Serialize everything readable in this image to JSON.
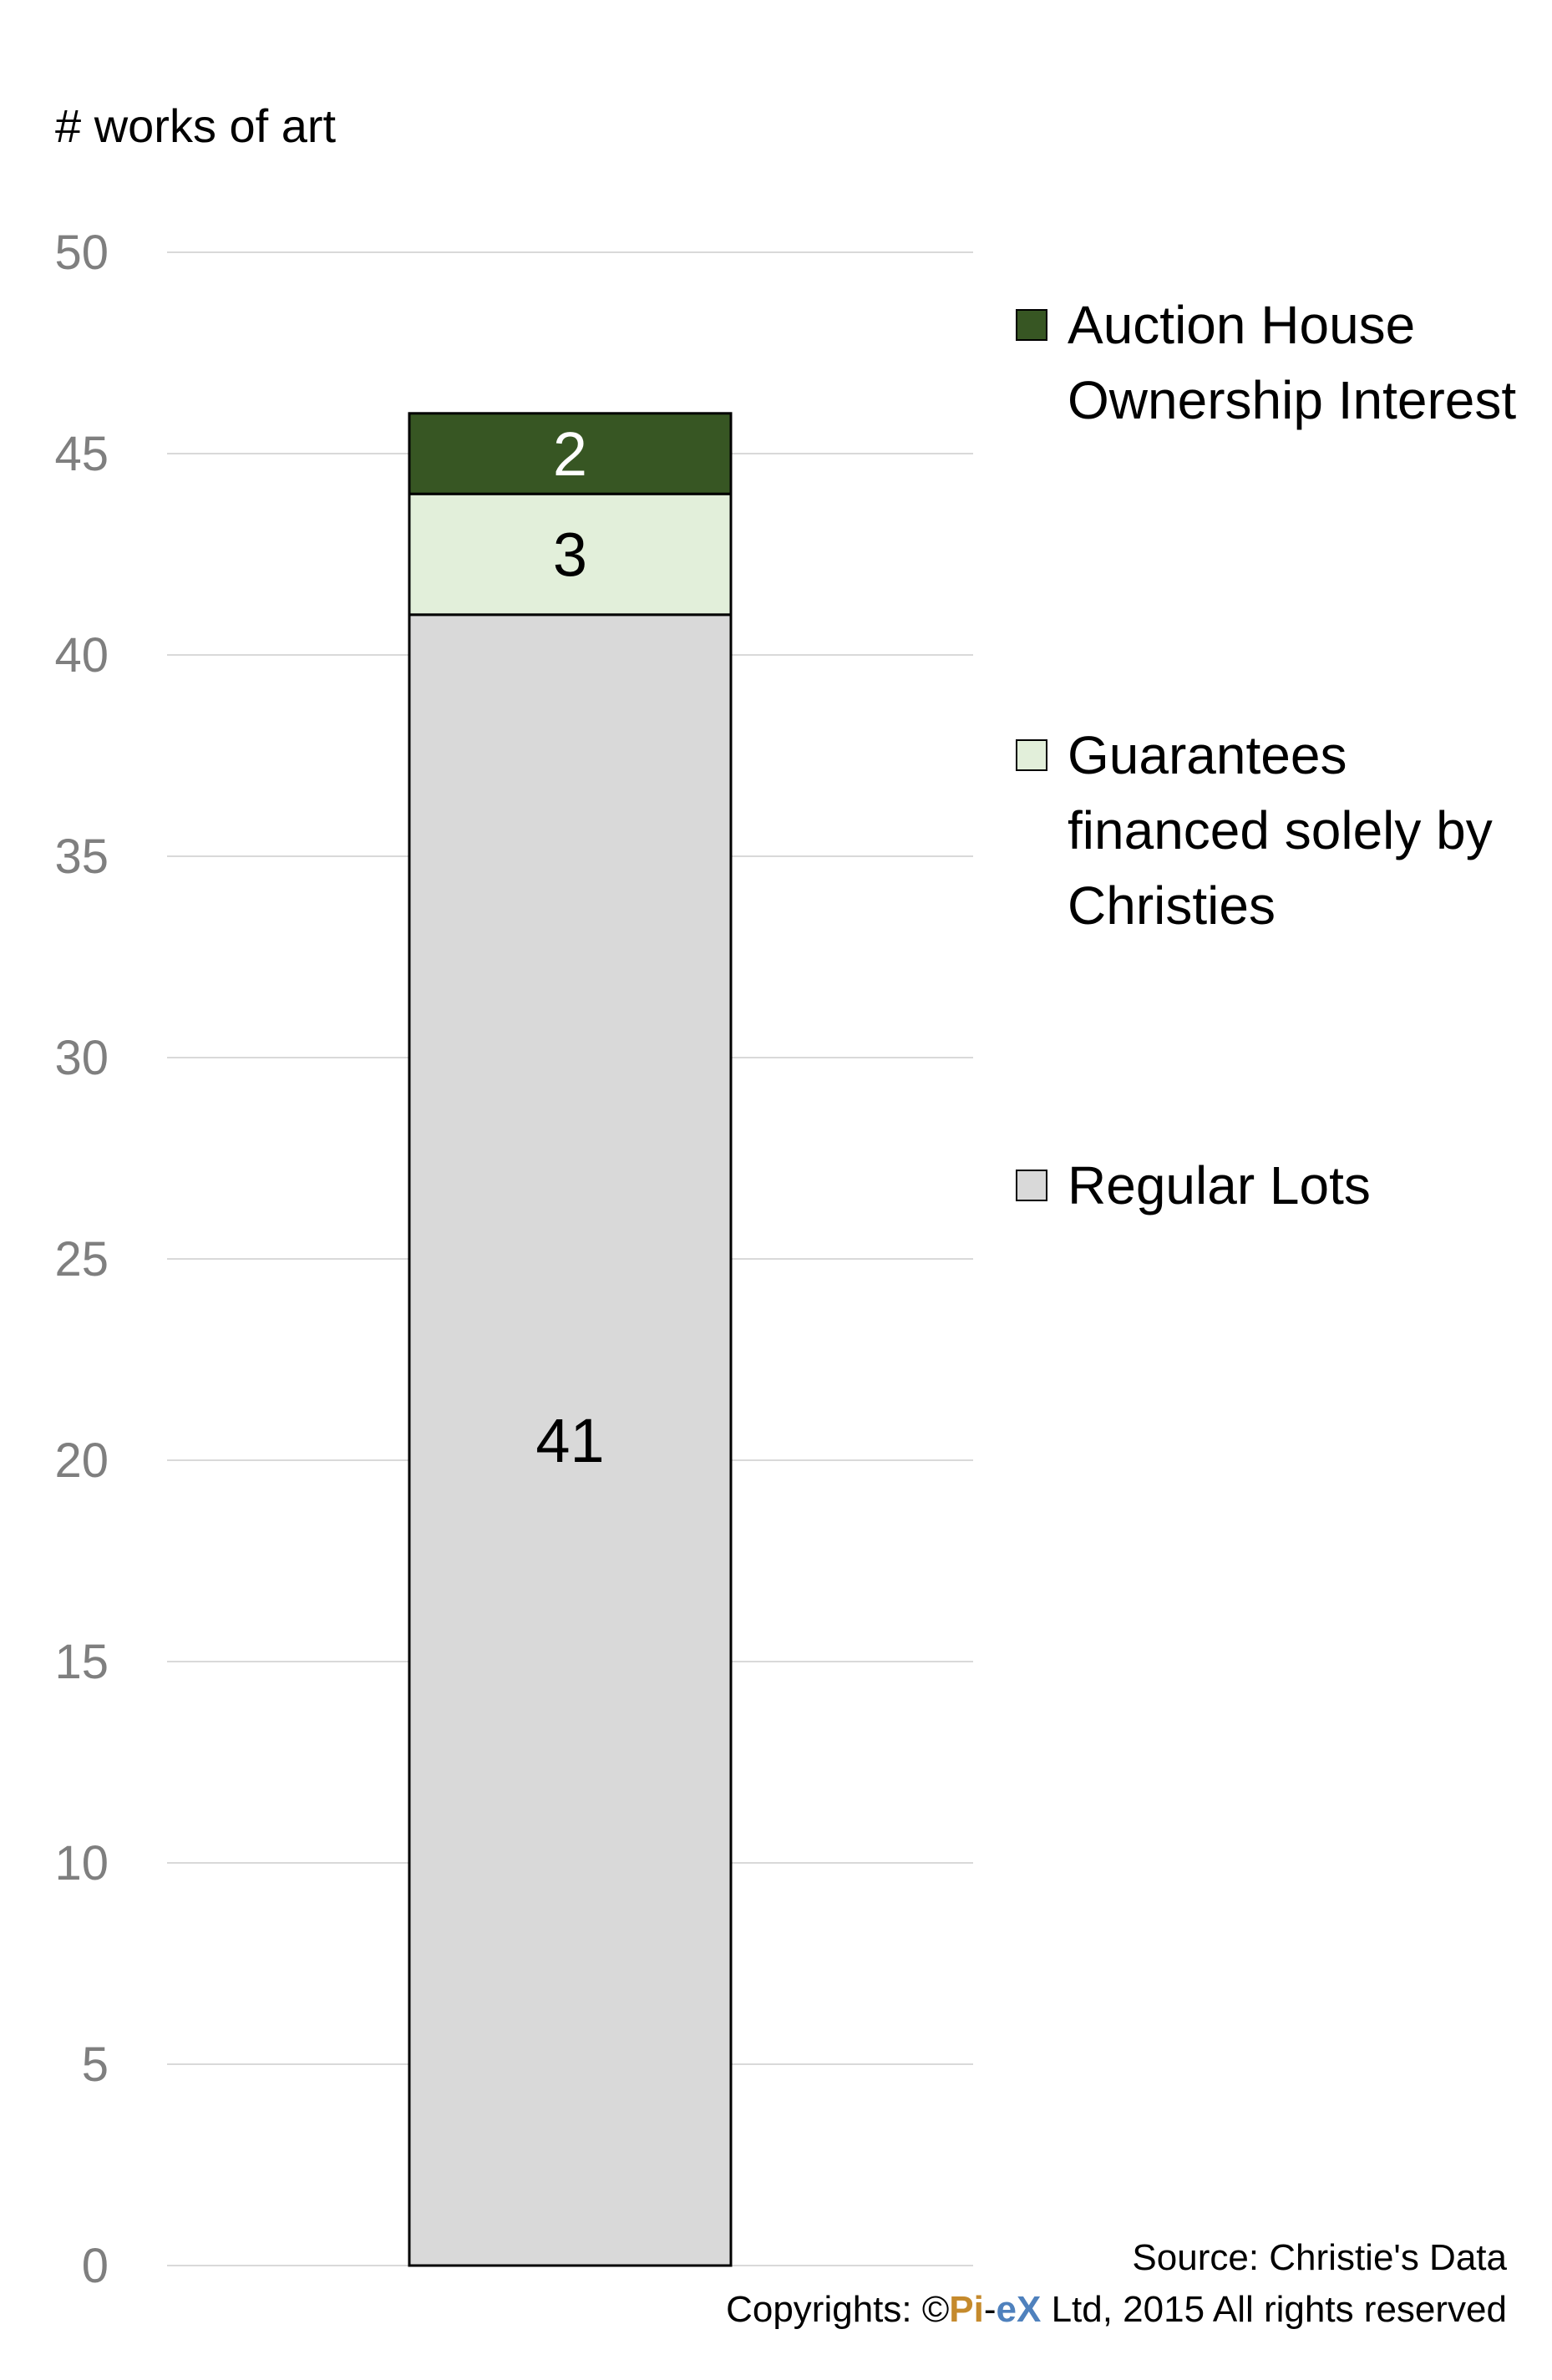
{
  "chart_data": {
    "type": "bar",
    "stacked": true,
    "categories": [
      ""
    ],
    "ylabel": "# works of art",
    "ylim": [
      0,
      50
    ],
    "yticks": [
      0,
      5,
      10,
      15,
      20,
      25,
      30,
      35,
      40,
      45,
      50
    ],
    "grid": true,
    "legend_position": "right",
    "series": [
      {
        "name": "Regular Lots",
        "values": [
          41
        ],
        "color": "#d9d9d9",
        "label_color": "#000000"
      },
      {
        "name": "Guarantees financed solely by Christies",
        "values": [
          3
        ],
        "color": "#e2efda",
        "label_color": "#000000"
      },
      {
        "name": "Auction House Ownership Interest",
        "values": [
          2
        ],
        "color": "#375623",
        "label_color": "#ffffff"
      }
    ]
  },
  "legend": [
    {
      "label": "Auction House Ownership Interest",
      "color": "#375623"
    },
    {
      "label": "Guarantees financed solely by Christies",
      "color": "#e2efda"
    },
    {
      "label": "Regular Lots",
      "color": "#d9d9d9"
    }
  ],
  "footer": {
    "source": "Source: Christie's Data",
    "copyright_prefix": "Copyrights: ©",
    "brand_pi": "Pi",
    "brand_dash": "-",
    "brand_ex": "eX",
    "copyright_suffix": " Ltd, 2015 All rights reserved"
  },
  "colors": {
    "grid": "#d9d9d9",
    "tick_text": "#7f7f7f",
    "bar_border": "#000000"
  }
}
